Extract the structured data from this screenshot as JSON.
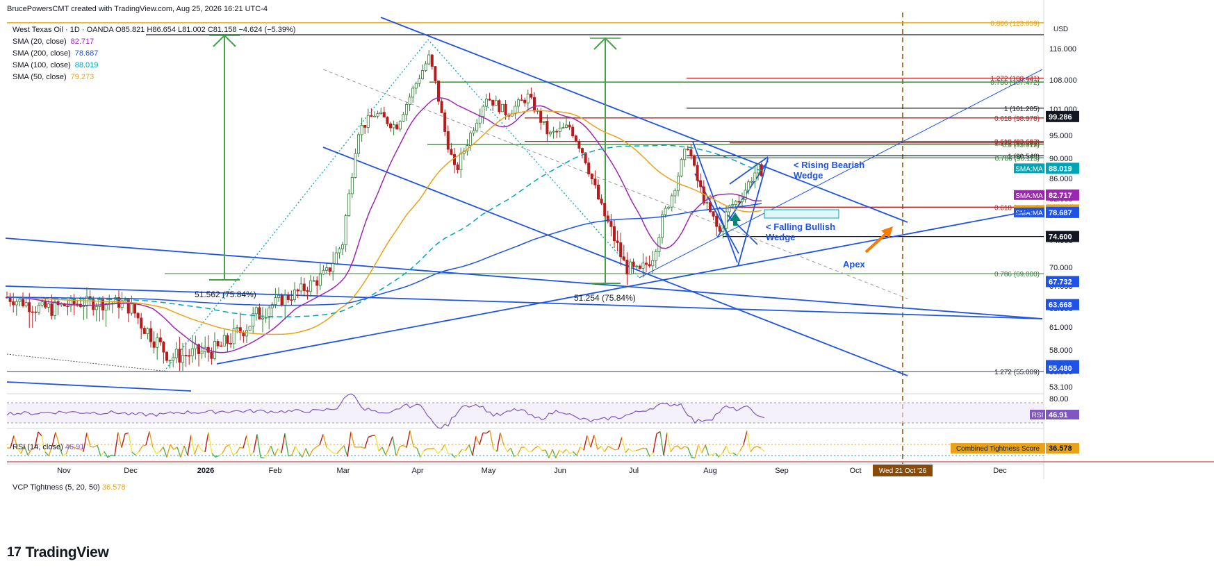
{
  "header": {
    "credit": "BrucePowersCMT created with TradingView.com, Aug 25, 2026 16:21 UTC-4"
  },
  "legend": {
    "symbol_line": "West Texas Oil · 1D · OANDA  O85.821  H86.654  L81.002  C81.158  −4.624 (−5.39%)",
    "items": [
      {
        "label": "SMA (20, close)",
        "value": "82.717",
        "color": "#9c27b0"
      },
      {
        "label": "SMA (200, close)",
        "value": "78.687",
        "color": "#1e53e5"
      },
      {
        "label": "SMA (100, close)",
        "value": "88.019",
        "color": "#00a5b5"
      },
      {
        "label": "SMA (50, close)",
        "value": "79.273",
        "color": "#e8a317"
      }
    ]
  },
  "rsi_title": "RSI (14, close)",
  "rsi_value": "46.91",
  "vcp_title": "VCP Tightness (5, 20, 50)",
  "vcp_value": "36.578",
  "brand": "TradingView",
  "chart_data": {
    "type": "candlestick",
    "currency": "USD",
    "ylim": [
      50,
      122
    ],
    "price_axis_ticks": [
      "116.000",
      "108.000",
      "101.000",
      "95.000",
      "90.000",
      "86.000",
      "82.000",
      "78.000",
      "74.000",
      "70.000",
      "67.000",
      "63.000",
      "61.000",
      "58.000",
      "55.000",
      "53.100"
    ],
    "time_axis_ticks": [
      "Nov",
      "Dec",
      "2026",
      "Feb",
      "Mar",
      "Apr",
      "May",
      "Jun",
      "Jul",
      "Aug",
      "Sep",
      "Oct",
      "Dec"
    ],
    "time_axis_highlight": "Wed 21 Oct '26",
    "price_labels": [
      {
        "text": "99.286",
        "value": 99.286,
        "bg": "#131722",
        "fg": "#ffffff"
      },
      {
        "text": "88.019",
        "value": 88.019,
        "bg": "#00a5b5",
        "fg": "#ffffff",
        "tag": "SMA:MA"
      },
      {
        "text": "82.717",
        "value": 82.717,
        "bg": "#9c27b0",
        "fg": "#ffffff",
        "tag": "SMA:MA"
      },
      {
        "text": "79.273",
        "value": 79.273,
        "bg": "#e8a317",
        "fg": "#131722",
        "tag": "SMA:MA"
      },
      {
        "text": "78.687",
        "value": 78.687,
        "bg": "#1e53e5",
        "fg": "#ffffff",
        "tag": "SMA:MA"
      },
      {
        "text": "74.600",
        "value": 74.6,
        "bg": "#131722",
        "fg": "#ffffff"
      },
      {
        "text": "67.732",
        "value": 67.732,
        "bg": "#1e53e5",
        "fg": "#ffffff"
      },
      {
        "text": "63.668",
        "value": 63.668,
        "bg": "#1e53e5",
        "fg": "#ffffff"
      },
      {
        "text": "55.824",
        "value": 55.824,
        "bg": "#1e53e5",
        "fg": "#ffffff"
      },
      {
        "text": "55.480",
        "value": 55.48,
        "bg": "#1e53e5",
        "fg": "#ffffff"
      }
    ],
    "fib_levels": [
      {
        "text": "0.886 (123.059)",
        "value": 122.2,
        "color": "#e8a317"
      },
      {
        "text": "1.272 (108.441)",
        "value": 108.441,
        "color": "#b71c1c"
      },
      {
        "text": "0.786 (107.472)",
        "value": 107.472,
        "color": "#2e7d32"
      },
      {
        "text": "1 (101.205)",
        "value": 101.205,
        "color": "#131722"
      },
      {
        "text": "0.618 (98.978)",
        "value": 98.978,
        "color": "#b71c1c"
      },
      {
        "text": "0.618 (93.693)",
        "value": 93.693,
        "color": "#b71c1c"
      },
      {
        "text": "1.272 (93.381)",
        "value": 93.381,
        "color": "#b71c1c"
      },
      {
        "text": "0.5 (93.012)",
        "value": 93.012,
        "color": "#2e7d32"
      },
      {
        "text": "1 (90.548)",
        "value": 90.548,
        "color": "#131722"
      },
      {
        "text": "0.786 (90.113)",
        "value": 90.113,
        "color": "#2e7d32"
      },
      {
        "text": "0.618 (79.945)",
        "value": 79.945,
        "color": "#b71c1c"
      },
      {
        "text": "0.786 (69.000)",
        "value": 69.0,
        "color": "#2e7d32"
      },
      {
        "text": "1.272 (55.009)",
        "value": 55.009,
        "color": "#131722"
      }
    ],
    "annotations": [
      {
        "text": "< Rising Bearish Wedge",
        "color": "#1e53e5"
      },
      {
        "text": "< Falling Bullish Wedge",
        "color": "#1e53e5"
      },
      {
        "text": "Apex",
        "color": "#1e53e5"
      },
      {
        "text": "51.562 (75.84%)",
        "color": "#131722"
      },
      {
        "text": "51.254 (75.84%)",
        "color": "#131722"
      }
    ],
    "rsi": {
      "upper": 80.0,
      "value": 46.91,
      "tag": "RSI"
    },
    "vcp": {
      "value": 36.578,
      "tag": "Combined Tightness Score"
    }
  }
}
